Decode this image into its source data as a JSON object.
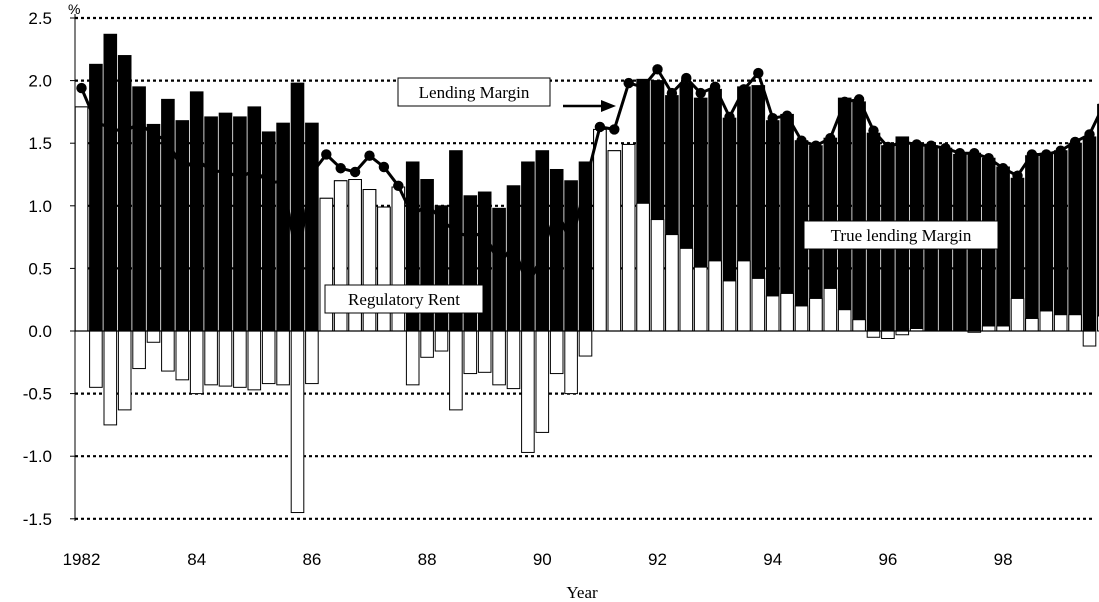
{
  "chart_data": {
    "type": "bar",
    "ylabel": "%",
    "xlabel": "Year",
    "ylim": [
      -1.5,
      2.5
    ],
    "yticks": [
      "2.5",
      "2.0",
      "1.5",
      "1.0",
      "0.5",
      "0.0",
      "-0.5",
      "-1.0",
      "-1.5"
    ],
    "xticks": [
      "1982",
      "84",
      "86",
      "88",
      "90",
      "92",
      "94",
      "96",
      "98"
    ],
    "x_start": 1982.0,
    "x_step": 0.25,
    "series": [
      {
        "name": "Lending Margin",
        "type": "line",
        "color": "#000000",
        "values": [
          1.94,
          1.67,
          1.62,
          1.59,
          1.66,
          1.57,
          1.52,
          1.28,
          1.38,
          1.27,
          1.28,
          1.22,
          1.29,
          1.18,
          1.2,
          0.54,
          1.26,
          1.41,
          1.3,
          1.27,
          1.4,
          1.31,
          1.16,
          0.92,
          1.01,
          0.89,
          0.79,
          0.75,
          0.79,
          0.53,
          0.69,
          0.35,
          0.62,
          0.98,
          0.69,
          1.18,
          1.63,
          1.61,
          1.98,
          1.95,
          2.09,
          1.9,
          2.02,
          1.9,
          1.95,
          1.71,
          1.93,
          2.06,
          1.7,
          1.72,
          1.52,
          1.48,
          1.54,
          1.83,
          1.85,
          1.6,
          1.47,
          1.51,
          1.49,
          1.48,
          1.46,
          1.42,
          1.42,
          1.38,
          1.3,
          1.24,
          1.41,
          1.41,
          1.44,
          1.51,
          1.57,
          1.81
        ]
      },
      {
        "name": "True lending Margin",
        "type": "bar",
        "fill": "#000000",
        "values": [
          1.79,
          2.13,
          2.37,
          2.2,
          1.95,
          1.65,
          1.85,
          1.68,
          1.91,
          1.71,
          1.74,
          1.71,
          1.79,
          1.59,
          1.66,
          1.98,
          1.66,
          1.06,
          1.2,
          1.21,
          1.13,
          0.99,
          1.15,
          1.35,
          1.21,
          1.0,
          1.44,
          1.08,
          1.11,
          0.98,
          1.16,
          1.35,
          1.44,
          1.29,
          1.2,
          1.35,
          1.61,
          1.44,
          1.49,
          2.01,
          2.0,
          1.88,
          1.98,
          1.86,
          1.93,
          1.7,
          1.95,
          1.96,
          1.68,
          1.73,
          1.52,
          1.48,
          1.54,
          1.86,
          1.83,
          1.58,
          1.48,
          1.55,
          1.5,
          1.48,
          1.46,
          1.41,
          1.42,
          1.38,
          1.31,
          1.22,
          1.4,
          1.42,
          1.44,
          1.5,
          1.55,
          1.81
        ]
      },
      {
        "name": "Regulatory Rent",
        "type": "bar",
        "fill": "#ffffff",
        "values": [
          1.79,
          -0.45,
          -0.75,
          -0.63,
          -0.3,
          -0.09,
          -0.32,
          -0.39,
          -0.5,
          -0.43,
          -0.44,
          -0.45,
          -0.47,
          -0.42,
          -0.43,
          -1.45,
          -0.42,
          1.06,
          1.2,
          1.21,
          1.13,
          0.99,
          1.15,
          -0.43,
          -0.21,
          -0.16,
          -0.63,
          -0.34,
          -0.33,
          -0.43,
          -0.46,
          -0.97,
          -0.81,
          -0.34,
          -0.5,
          -0.2,
          1.61,
          1.44,
          1.49,
          1.02,
          0.89,
          0.77,
          0.66,
          0.51,
          0.56,
          0.4,
          0.56,
          0.42,
          0.28,
          0.3,
          0.2,
          0.26,
          0.34,
          0.17,
          0.09,
          -0.05,
          -0.06,
          -0.03,
          0.02,
          0.0,
          0.0,
          0.0,
          -0.01,
          0.04,
          0.04,
          0.26,
          0.1,
          0.16,
          0.13,
          0.13,
          -0.12,
          0.12
        ]
      }
    ],
    "annotations": [
      {
        "text": "Lending Margin",
        "arrow": true
      },
      {
        "text": "True lending Margin",
        "arrow": false
      },
      {
        "text": "Regulatory Rent",
        "arrow": false
      }
    ]
  }
}
